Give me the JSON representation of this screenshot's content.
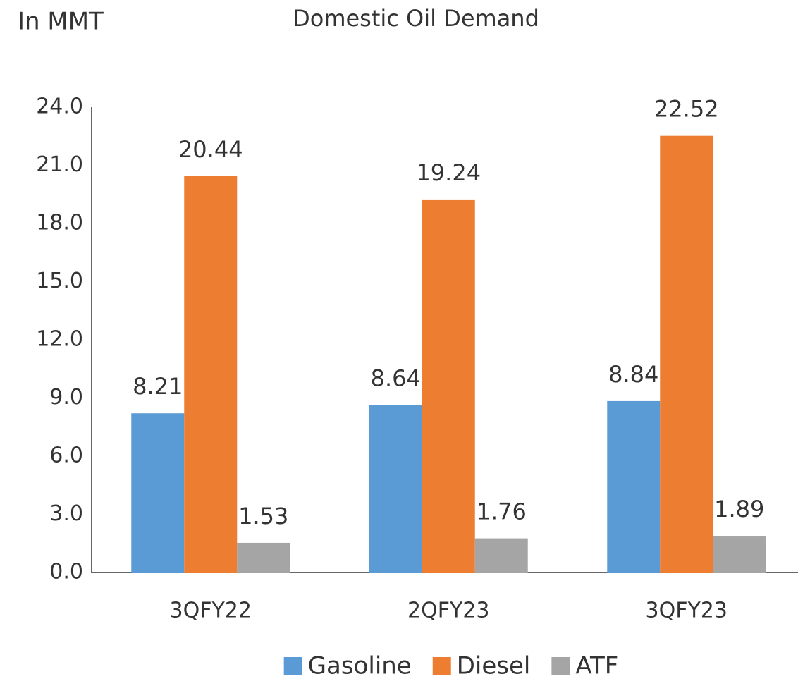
{
  "chart_data": {
    "type": "bar",
    "title": "Domestic Oil Demand",
    "y_label": "In MMT",
    "categories": [
      "3QFY22",
      "2QFY23",
      "3QFY23"
    ],
    "series": [
      {
        "name": "Gasoline",
        "color": "#5b9bd5",
        "values": [
          8.21,
          8.64,
          8.84
        ]
      },
      {
        "name": "Diesel",
        "color": "#ed7d31",
        "values": [
          20.44,
          19.24,
          22.52
        ]
      },
      {
        "name": "ATF",
        "color": "#a5a5a5",
        "values": [
          1.53,
          1.76,
          1.89
        ]
      }
    ],
    "ylim": [
      0,
      24
    ],
    "yticks": [
      {
        "value": 0,
        "label": "0.0"
      },
      {
        "value": 3,
        "label": "3.0"
      },
      {
        "value": 6,
        "label": "6.0"
      },
      {
        "value": 9,
        "label": "9.0"
      },
      {
        "value": 12,
        "label": "12.0"
      },
      {
        "value": 15,
        "label": "15.0"
      },
      {
        "value": 18,
        "label": "18.0"
      },
      {
        "value": 21,
        "label": "21.0"
      },
      {
        "value": 24,
        "label": "24.0"
      }
    ],
    "grid": false,
    "legend": "bottom"
  }
}
